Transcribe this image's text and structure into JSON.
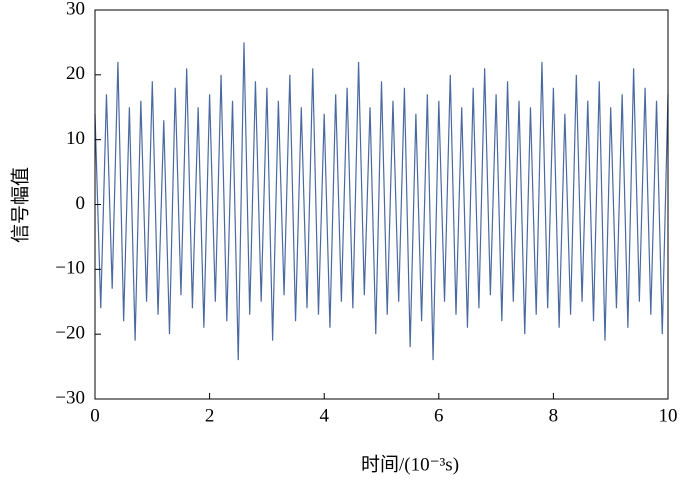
{
  "chart_data": {
    "type": "line",
    "xlabel": "时间/(10⁻³s)",
    "ylabel": "信号幅值",
    "x": [
      0,
      0.1,
      0.2,
      0.3,
      0.4,
      0.5,
      0.6,
      0.7,
      0.8,
      0.9,
      1,
      1.1,
      1.2,
      1.3,
      1.4,
      1.5,
      1.6,
      1.7,
      1.8,
      1.9,
      2,
      2.1,
      2.2,
      2.3,
      2.4,
      2.5,
      2.6,
      2.7,
      2.8,
      2.9,
      3,
      3.1,
      3.2,
      3.3,
      3.4,
      3.5,
      3.6,
      3.7,
      3.8,
      3.9,
      4,
      4.1,
      4.2,
      4.3,
      4.4,
      4.5,
      4.6,
      4.7,
      4.8,
      4.9,
      5,
      5.1,
      5.2,
      5.3,
      5.4,
      5.5,
      5.6,
      5.7,
      5.8,
      5.9,
      6,
      6.1,
      6.2,
      6.3,
      6.4,
      6.5,
      6.6,
      6.7,
      6.8,
      6.9,
      7,
      7.1,
      7.2,
      7.3,
      7.4,
      7.5,
      7.6,
      7.7,
      7.8,
      7.9,
      8,
      8.1,
      8.2,
      8.3,
      8.4,
      8.5,
      8.6,
      8.7,
      8.8,
      8.9,
      9,
      9.1,
      9.2,
      9.3,
      9.4,
      9.5,
      9.6,
      9.7,
      9.8,
      9.9,
      10
    ],
    "series": [
      {
        "color": "#4a69a0",
        "values": [
          14,
          -16,
          17,
          -13,
          22,
          -18,
          15,
          -21,
          16,
          -15,
          19,
          -17,
          13,
          -20,
          18,
          -14,
          21,
          -16,
          15,
          -19,
          17,
          -15,
          20,
          -18,
          16,
          -24,
          25,
          -17,
          19,
          -15,
          18,
          -21,
          16,
          -14,
          20,
          -18,
          15,
          -16,
          21,
          -17,
          14,
          -19,
          17,
          -15,
          18,
          -16,
          22,
          -14,
          15,
          -20,
          19,
          -17,
          16,
          -15,
          18,
          -22,
          14,
          -18,
          17,
          -24,
          16,
          -15,
          20,
          -17,
          15,
          -19,
          18,
          -16,
          21,
          -14,
          17,
          -18,
          19,
          -15,
          16,
          -20,
          15,
          -17,
          22,
          -16,
          18,
          -19,
          14,
          -17,
          20,
          -15,
          16,
          -18,
          19,
          -21,
          15,
          -16,
          17,
          -19,
          21,
          -15,
          18,
          -17,
          16,
          -20,
          17
        ]
      }
    ],
    "xlim": [
      0,
      10
    ],
    "xticks": [
      0,
      2,
      4,
      6,
      8,
      10
    ],
    "ylim": [
      -30,
      30
    ],
    "yticks": [
      {
        "value": -30,
        "label": "−30"
      },
      {
        "value": -20,
        "label": "−20"
      },
      {
        "value": -10,
        "label": "−10"
      },
      0,
      10,
      20,
      30
    ]
  }
}
